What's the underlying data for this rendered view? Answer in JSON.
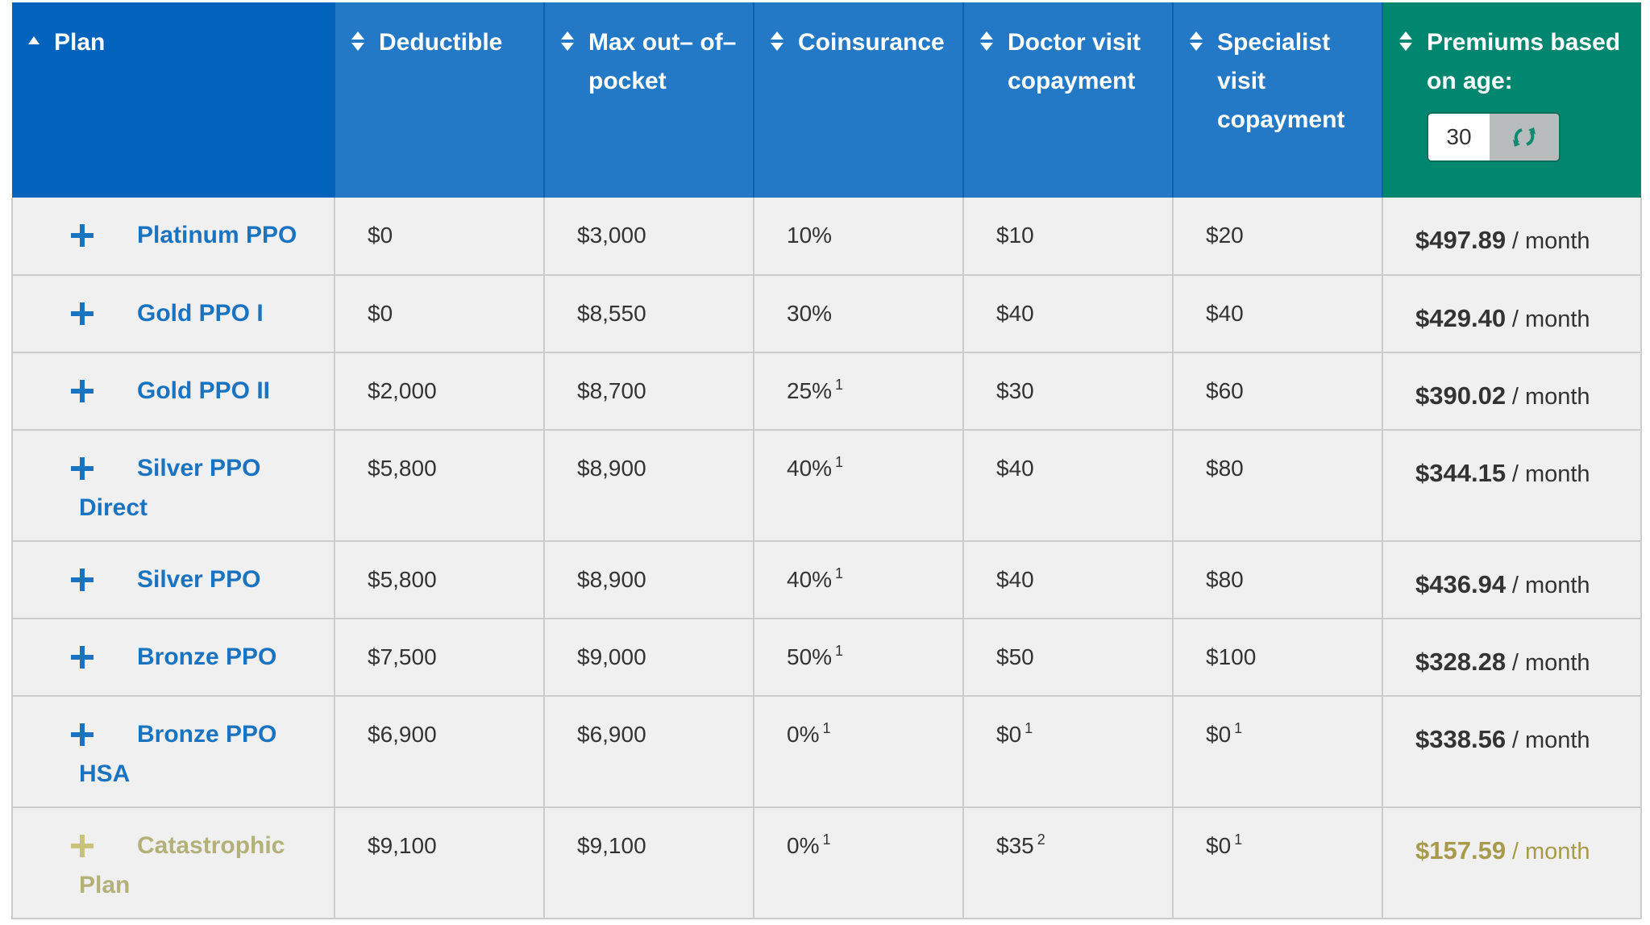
{
  "header": {
    "plan": "Plan",
    "deductible": "Deductible",
    "max_oop": "Max out– of–pocket",
    "coinsurance": "Coinsurance",
    "doctor_copay": "Doctor visit copayment",
    "specialist_copay": "Specialist visit copayment",
    "premiums": "Premiums based on age:",
    "age_value": "30"
  },
  "icons": {
    "sort": "sort-icon",
    "sort_asc": "sort-ascending-icon",
    "refresh": "refresh-icon",
    "expand": "plus-icon"
  },
  "colors": {
    "plan_header": "#0263bd",
    "column_header": "#2479c7",
    "premium_header": "#01876f",
    "plan_link": "#1a73c1",
    "highlight": "#fbdf5e"
  },
  "rows": [
    {
      "plan_l1": "Platinum PPO",
      "plan_l2": "",
      "deductible": "$0",
      "max_oop": "$3,000",
      "coins": "10%",
      "coins_sup": "",
      "doctor": "$10",
      "doctor_sup": "",
      "specialist": "$20",
      "specialist_sup": "",
      "premium": "$497.89",
      "per": "/ month"
    },
    {
      "plan_l1": "Gold PPO I",
      "plan_l2": "",
      "deductible": "$0",
      "max_oop": "$8,550",
      "coins": "30%",
      "coins_sup": "",
      "doctor": "$40",
      "doctor_sup": "",
      "specialist": "$40",
      "specialist_sup": "",
      "premium": "$429.40",
      "per": "/ month"
    },
    {
      "plan_l1": "Gold PPO II",
      "plan_l2": "",
      "deductible": "$2,000",
      "max_oop": "$8,700",
      "coins": "25%",
      "coins_sup": "1",
      "doctor": "$30",
      "doctor_sup": "",
      "specialist": "$60",
      "specialist_sup": "",
      "premium": "$390.02",
      "per": "/ month"
    },
    {
      "plan_l1": "Silver PPO",
      "plan_l2": "Direct",
      "deductible": "$5,800",
      "max_oop": "$8,900",
      "coins": "40%",
      "coins_sup": "1",
      "doctor": "$40",
      "doctor_sup": "",
      "specialist": "$80",
      "specialist_sup": "",
      "premium": "$344.15",
      "per": "/ month"
    },
    {
      "plan_l1": "Silver PPO",
      "plan_l2": "",
      "deductible": "$5,800",
      "max_oop": "$8,900",
      "coins": "40%",
      "coins_sup": "1",
      "doctor": "$40",
      "doctor_sup": "",
      "specialist": "$80",
      "specialist_sup": "",
      "premium": "$436.94",
      "per": "/ month"
    },
    {
      "plan_l1": "Bronze PPO",
      "plan_l2": "",
      "deductible": "$7,500",
      "max_oop": "$9,000",
      "coins": "50%",
      "coins_sup": "1",
      "doctor": "$50",
      "doctor_sup": "",
      "specialist": "$100",
      "specialist_sup": "",
      "premium": "$328.28",
      "per": "/ month"
    },
    {
      "plan_l1": "Bronze PPO",
      "plan_l2": "HSA",
      "deductible": "$6,900",
      "max_oop": "$6,900",
      "coins": "0%",
      "coins_sup": "1",
      "doctor": "$0",
      "doctor_sup": "1",
      "specialist": "$0",
      "specialist_sup": "1",
      "premium": "$338.56",
      "per": "/ month"
    },
    {
      "plan_l1": "Catastrophic",
      "plan_l2": "Plan",
      "deductible": "$9,100",
      "max_oop": "$9,100",
      "coins": "0%",
      "coins_sup": "1",
      "doctor": "$35",
      "doctor_sup": "2",
      "specialist": "$0",
      "specialist_sup": "1",
      "premium": "$157.59",
      "per": "/ month"
    }
  ]
}
